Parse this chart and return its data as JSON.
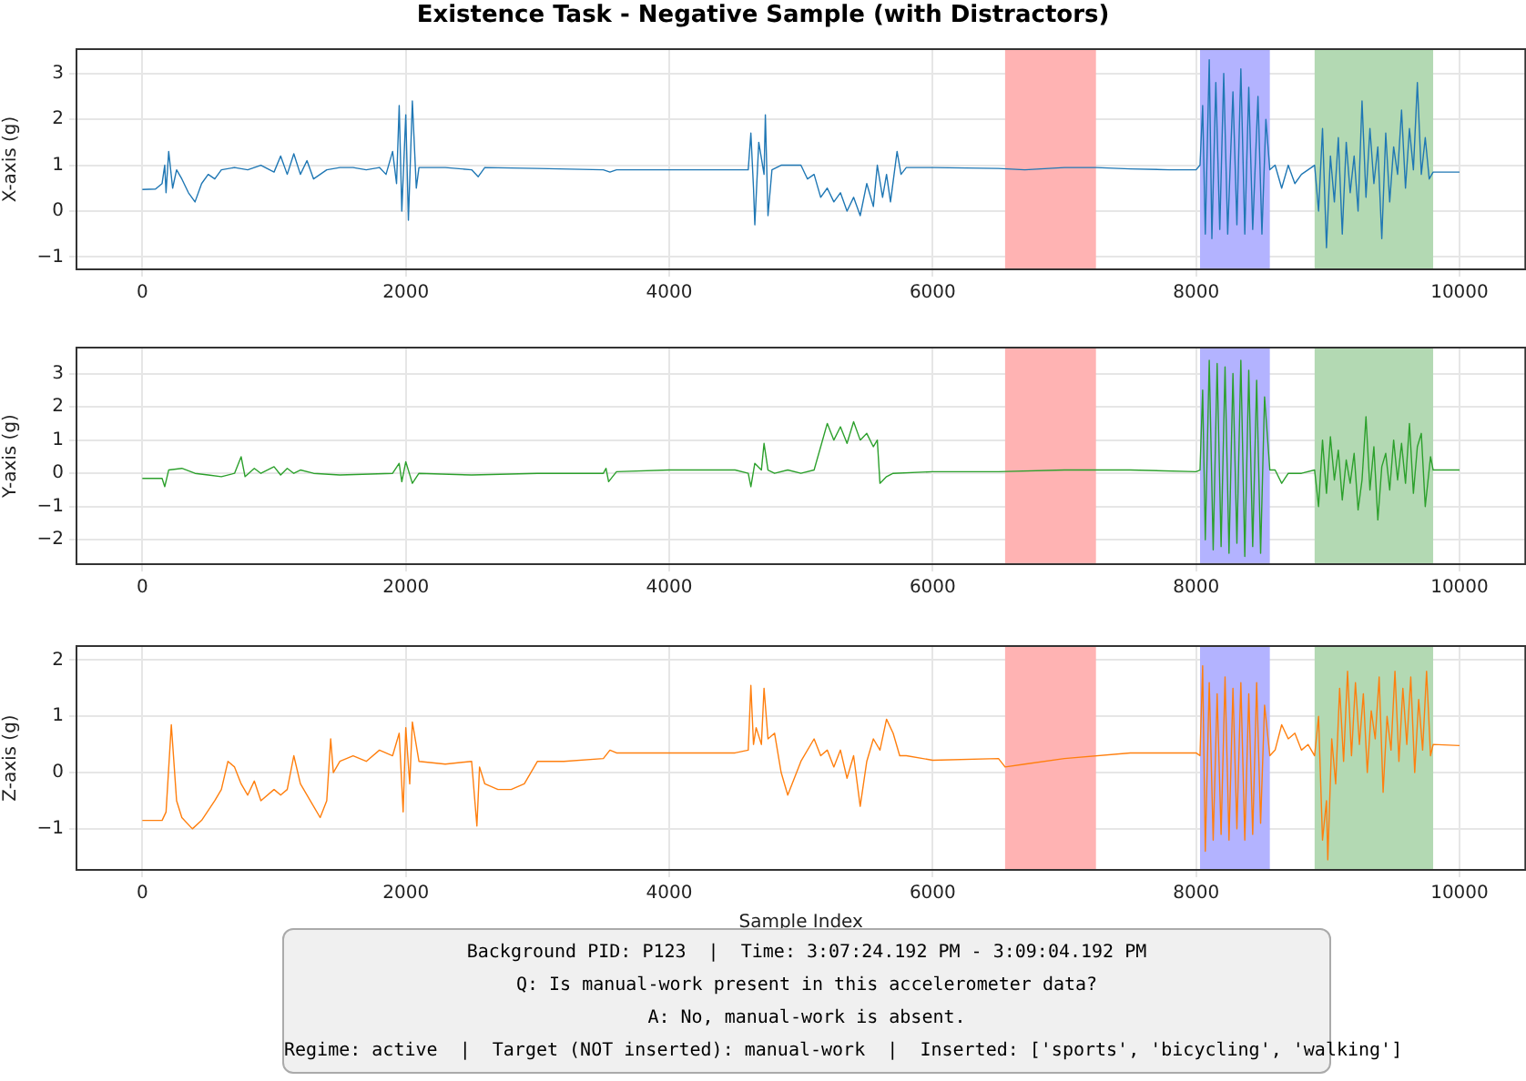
{
  "chart_data": [
    {
      "type": "line",
      "title": "Existence Task - Negative Sample (with Distractors)",
      "ylabel": "X-axis (g)",
      "xlim": [
        -500,
        10500
      ],
      "xticks": [
        0,
        2000,
        4000,
        6000,
        8000,
        10000
      ],
      "ylim": [
        -1.27,
        3.53
      ],
      "yticks": [
        -1,
        0,
        1,
        2,
        3
      ],
      "grid": true,
      "bands": [
        {
          "axis": "x",
          "from": 6550,
          "to": 7240,
          "color": "#ffb3b3"
        },
        {
          "axis": "x",
          "from": 8030,
          "to": 8560,
          "color": "#b3b3ff"
        },
        {
          "axis": "x",
          "from": 8900,
          "to": 9800,
          "color": "#b3d9b3"
        }
      ],
      "series": [
        {
          "color": "#1f77b4",
          "x": [
            0,
            100,
            150,
            170,
            180,
            200,
            230,
            260,
            300,
            350,
            400,
            450,
            500,
            550,
            600,
            700,
            800,
            900,
            1000,
            1050,
            1100,
            1150,
            1200,
            1250,
            1300,
            1400,
            1500,
            1600,
            1700,
            1800,
            1850,
            1900,
            1930,
            1950,
            1970,
            2000,
            2020,
            2050,
            2080,
            2100,
            2300,
            2500,
            2550,
            2600,
            3000,
            3500,
            3550,
            3600,
            4000,
            4500,
            4600,
            4620,
            4640,
            4650,
            4680,
            4720,
            4730,
            4750,
            4780,
            4850,
            5000,
            5050,
            5100,
            5150,
            5200,
            5250,
            5300,
            5350,
            5400,
            5450,
            5500,
            5550,
            5580,
            5620,
            5650,
            5680,
            5730,
            5760,
            5800,
            6000,
            6500,
            6700,
            7000,
            7240,
            7500,
            7800,
            8000,
            8030,
            8050,
            8070,
            8100,
            8120,
            8150,
            8180,
            8210,
            8240,
            8280,
            8310,
            8340,
            8370,
            8400,
            8430,
            8470,
            8500,
            8530,
            8560,
            8600,
            8650,
            8700,
            8750,
            8800,
            8850,
            8900,
            8930,
            8960,
            8990,
            9020,
            9050,
            9080,
            9110,
            9140,
            9170,
            9200,
            9230,
            9260,
            9290,
            9320,
            9350,
            9380,
            9410,
            9440,
            9470,
            9500,
            9530,
            9560,
            9590,
            9620,
            9650,
            9680,
            9710,
            9740,
            9770,
            9800,
            10000
          ],
          "values": [
            0.47,
            0.48,
            0.6,
            1.0,
            0.4,
            1.3,
            0.5,
            0.9,
            0.7,
            0.4,
            0.2,
            0.6,
            0.8,
            0.7,
            0.9,
            0.95,
            0.9,
            1.0,
            0.85,
            1.2,
            0.8,
            1.25,
            0.8,
            1.1,
            0.7,
            0.9,
            0.95,
            0.95,
            0.9,
            0.95,
            0.8,
            1.3,
            0.6,
            2.3,
            0.0,
            2.1,
            -0.2,
            2.4,
            0.5,
            0.95,
            0.95,
            0.9,
            0.75,
            0.95,
            0.93,
            0.9,
            0.85,
            0.9,
            0.9,
            0.9,
            0.9,
            1.7,
            0.5,
            -0.3,
            1.5,
            0.8,
            2.1,
            -0.1,
            0.9,
            1.0,
            1.0,
            0.7,
            0.8,
            0.3,
            0.5,
            0.2,
            0.4,
            0.0,
            0.3,
            -0.1,
            0.6,
            0.1,
            1.0,
            0.3,
            0.8,
            0.2,
            1.3,
            0.8,
            0.95,
            0.95,
            0.93,
            0.9,
            0.95,
            0.95,
            0.92,
            0.9,
            0.9,
            1.0,
            2.3,
            -0.5,
            3.3,
            -0.6,
            2.8,
            -0.4,
            3.0,
            -0.5,
            2.6,
            -0.3,
            3.1,
            -0.5,
            2.7,
            -0.4,
            2.5,
            -0.5,
            2.0,
            0.9,
            1.0,
            0.5,
            1.0,
            0.6,
            0.8,
            0.9,
            1.0,
            0.0,
            1.8,
            -0.8,
            1.2,
            0.2,
            1.6,
            -0.5,
            1.5,
            0.4,
            1.2,
            0.0,
            2.4,
            0.3,
            1.8,
            0.6,
            1.4,
            -0.6,
            1.7,
            0.2,
            1.4,
            0.8,
            2.2,
            0.5,
            1.8,
            0.9,
            2.8,
            0.8,
            1.6,
            0.7,
            0.85,
            0.85
          ]
        }
      ]
    },
    {
      "type": "line",
      "ylabel": "Y-axis (g)",
      "xlim": [
        -500,
        10500
      ],
      "xticks": [
        0,
        2000,
        4000,
        6000,
        8000,
        10000
      ],
      "ylim": [
        -2.73,
        3.78
      ],
      "yticks": [
        -2,
        -1,
        0,
        1,
        2,
        3
      ],
      "grid": true,
      "bands": [
        {
          "axis": "x",
          "from": 6550,
          "to": 7240,
          "color": "#ffb3b3"
        },
        {
          "axis": "x",
          "from": 8030,
          "to": 8560,
          "color": "#b3b3ff"
        },
        {
          "axis": "x",
          "from": 8900,
          "to": 9800,
          "color": "#b3d9b3"
        }
      ],
      "series": [
        {
          "color": "#2ca02c",
          "x": [
            0,
            150,
            170,
            200,
            300,
            400,
            500,
            600,
            700,
            750,
            780,
            850,
            900,
            1000,
            1050,
            1100,
            1150,
            1200,
            1300,
            1500,
            1900,
            1950,
            1970,
            2000,
            2050,
            2100,
            2500,
            3000,
            3500,
            3520,
            3540,
            3600,
            4000,
            4500,
            4600,
            4620,
            4650,
            4700,
            4720,
            4750,
            4800,
            4900,
            5000,
            5100,
            5150,
            5200,
            5250,
            5300,
            5350,
            5400,
            5450,
            5500,
            5550,
            5580,
            5600,
            5650,
            5700,
            6000,
            6500,
            7000,
            7240,
            7500,
            8000,
            8030,
            8050,
            8070,
            8100,
            8130,
            8160,
            8190,
            8220,
            8250,
            8280,
            8310,
            8340,
            8370,
            8400,
            8430,
            8460,
            8490,
            8520,
            8560,
            8600,
            8650,
            8700,
            8800,
            8900,
            8930,
            8960,
            8990,
            9020,
            9050,
            9080,
            9110,
            9140,
            9170,
            9200,
            9230,
            9260,
            9290,
            9320,
            9350,
            9380,
            9410,
            9440,
            9470,
            9500,
            9530,
            9560,
            9590,
            9620,
            9650,
            9680,
            9710,
            9740,
            9780,
            9800,
            10000
          ],
          "values": [
            -0.15,
            -0.15,
            -0.4,
            0.1,
            0.15,
            0.0,
            -0.05,
            -0.1,
            0.0,
            0.5,
            -0.1,
            0.15,
            0.0,
            0.2,
            -0.05,
            0.15,
            0.0,
            0.1,
            0.0,
            -0.05,
            0.0,
            0.3,
            -0.25,
            0.35,
            -0.3,
            0.0,
            -0.05,
            0.0,
            0.0,
            0.15,
            -0.25,
            0.05,
            0.1,
            0.1,
            0.0,
            -0.4,
            0.3,
            0.1,
            0.9,
            0.1,
            0.0,
            0.1,
            0.0,
            0.1,
            0.8,
            1.5,
            1.0,
            1.4,
            0.9,
            1.55,
            1.0,
            1.2,
            0.8,
            1.0,
            -0.3,
            -0.1,
            0.0,
            0.05,
            0.05,
            0.1,
            0.1,
            0.1,
            0.05,
            0.1,
            2.5,
            -2.0,
            3.4,
            -2.3,
            3.3,
            -2.2,
            3.2,
            -2.4,
            3.0,
            -2.1,
            3.4,
            -2.5,
            3.1,
            -2.2,
            2.8,
            -2.4,
            2.3,
            0.1,
            0.1,
            -0.3,
            0.0,
            0.0,
            0.1,
            -1.0,
            1.0,
            -0.6,
            1.1,
            -0.2,
            0.7,
            -0.8,
            0.4,
            -0.3,
            0.6,
            -1.1,
            -0.2,
            1.7,
            -0.5,
            0.8,
            -1.4,
            0.2,
            0.6,
            -0.5,
            1.0,
            -0.2,
            0.9,
            -0.3,
            1.5,
            -0.6,
            0.8,
            1.2,
            -1.0,
            0.5,
            0.1,
            0.1
          ]
        }
      ]
    },
    {
      "type": "line",
      "ylabel": "Z-axis (g)",
      "xlabel": "Sample Index",
      "xlim": [
        -500,
        10500
      ],
      "xticks": [
        0,
        2000,
        4000,
        6000,
        8000,
        10000
      ],
      "ylim": [
        -1.73,
        2.25
      ],
      "yticks": [
        -1,
        0,
        1,
        2
      ],
      "grid": true,
      "bands": [
        {
          "axis": "x",
          "from": 6550,
          "to": 7240,
          "color": "#ffb3b3"
        },
        {
          "axis": "x",
          "from": 8030,
          "to": 8560,
          "color": "#b3b3ff"
        },
        {
          "axis": "x",
          "from": 8900,
          "to": 9800,
          "color": "#b3d9b3"
        }
      ],
      "annotations": [
        "Background PID: P123  |  Time: 3:07:24.192 PM - 3:09:04.192 PM",
        "Q: Is manual-work present in this accelerometer data?",
        "A: No, manual-work is absent.",
        "Regime: active  |  Target (NOT inserted): manual-work  |  Inserted: ['sports', 'bicycling', 'walking']"
      ],
      "series": [
        {
          "color": "#ff7f0e",
          "x": [
            0,
            150,
            180,
            220,
            260,
            300,
            380,
            450,
            550,
            600,
            650,
            700,
            750,
            800,
            850,
            900,
            1000,
            1050,
            1100,
            1150,
            1200,
            1300,
            1350,
            1400,
            1430,
            1450,
            1500,
            1600,
            1700,
            1800,
            1900,
            1950,
            1980,
            2000,
            2030,
            2050,
            2100,
            2300,
            2500,
            2540,
            2560,
            2600,
            2700,
            2800,
            2900,
            3000,
            3200,
            3500,
            3550,
            3600,
            4000,
            4500,
            4600,
            4620,
            4640,
            4660,
            4700,
            4720,
            4750,
            4800,
            4850,
            4900,
            4950,
            5000,
            5100,
            5150,
            5200,
            5250,
            5300,
            5350,
            5400,
            5450,
            5500,
            5550,
            5600,
            5650,
            5700,
            5750,
            5800,
            6000,
            6500,
            6550,
            6700,
            7000,
            7500,
            8000,
            8030,
            8050,
            8070,
            8100,
            8130,
            8160,
            8190,
            8220,
            8250,
            8280,
            8310,
            8340,
            8370,
            8400,
            8430,
            8460,
            8490,
            8520,
            8560,
            8600,
            8650,
            8700,
            8750,
            8800,
            8850,
            8900,
            8930,
            8960,
            8990,
            9000,
            9030,
            9060,
            9090,
            9120,
            9150,
            9180,
            9210,
            9240,
            9270,
            9300,
            9330,
            9360,
            9390,
            9420,
            9450,
            9480,
            9510,
            9540,
            9570,
            9600,
            9630,
            9660,
            9690,
            9720,
            9750,
            9780,
            9800,
            10000
          ],
          "values": [
            -0.85,
            -0.85,
            -0.7,
            0.85,
            -0.5,
            -0.8,
            -1.0,
            -0.85,
            -0.5,
            -0.3,
            0.2,
            0.1,
            -0.2,
            -0.4,
            -0.15,
            -0.5,
            -0.3,
            -0.4,
            -0.3,
            0.3,
            -0.2,
            -0.6,
            -0.8,
            -0.5,
            0.6,
            0.0,
            0.2,
            0.3,
            0.2,
            0.4,
            0.3,
            0.7,
            -0.7,
            0.8,
            -0.2,
            0.9,
            0.2,
            0.15,
            0.2,
            -0.95,
            0.1,
            -0.2,
            -0.3,
            -0.3,
            -0.2,
            0.2,
            0.2,
            0.25,
            0.4,
            0.35,
            0.35,
            0.35,
            0.4,
            1.55,
            0.5,
            0.8,
            0.5,
            1.5,
            0.6,
            0.7,
            0.0,
            -0.4,
            -0.1,
            0.2,
            0.6,
            0.3,
            0.4,
            0.1,
            0.4,
            -0.1,
            0.3,
            -0.6,
            0.2,
            0.6,
            0.4,
            0.95,
            0.7,
            0.3,
            0.3,
            0.22,
            0.25,
            0.1,
            0.15,
            0.25,
            0.35,
            0.35,
            0.3,
            1.9,
            -1.4,
            1.6,
            -1.2,
            1.4,
            -1.1,
            1.7,
            -1.2,
            1.5,
            -1.0,
            1.6,
            -1.2,
            1.4,
            -1.1,
            1.6,
            -0.9,
            1.2,
            0.3,
            0.4,
            0.85,
            0.6,
            0.7,
            0.4,
            0.5,
            0.3,
            1.0,
            -1.2,
            -0.5,
            -1.55,
            0.6,
            -0.2,
            1.5,
            0.2,
            1.8,
            0.3,
            1.6,
            0.5,
            1.4,
            0.0,
            1.1,
            0.6,
            1.7,
            -0.35,
            1.0,
            0.4,
            1.8,
            0.2,
            1.5,
            0.5,
            1.7,
            0.0,
            1.3,
            0.4,
            1.8,
            0.3,
            0.5,
            0.48
          ]
        }
      ]
    }
  ]
}
